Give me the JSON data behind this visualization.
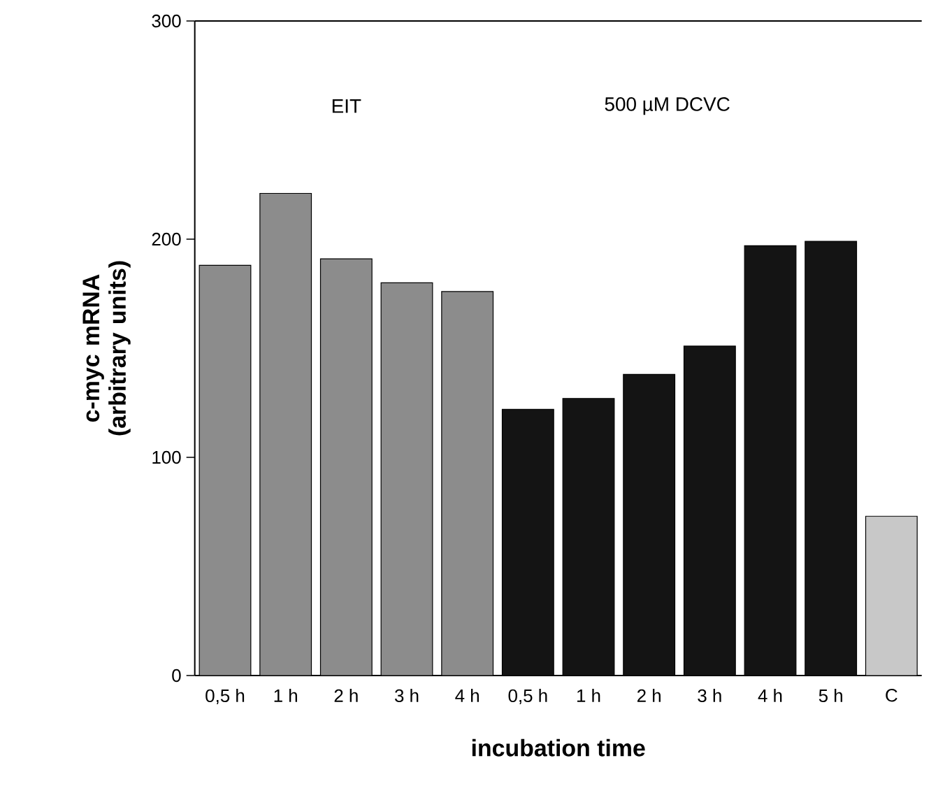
{
  "chart_data": {
    "type": "bar",
    "ylabel": "c-myc mRNA (arbitrary units)",
    "xlabel": "incubation time",
    "annotations": [
      "EIT",
      "500 µM DCVC"
    ],
    "categories": [
      "0,5 h",
      "1 h",
      "2 h",
      "3 h",
      "4 h",
      "0,5 h",
      "1 h",
      "2 h",
      "3 h",
      "4 h",
      "5 h",
      "C"
    ],
    "values": [
      188,
      221,
      191,
      180,
      176,
      122,
      127,
      138,
      151,
      197,
      199,
      73
    ],
    "colors": [
      "#8c8c8c",
      "#8c8c8c",
      "#8c8c8c",
      "#8c8c8c",
      "#8c8c8c",
      "#141414",
      "#141414",
      "#141414",
      "#141414",
      "#141414",
      "#141414",
      "#c8c8c8"
    ],
    "ylim": [
      0,
      300
    ],
    "yticks": [
      0,
      100,
      200,
      300
    ]
  }
}
